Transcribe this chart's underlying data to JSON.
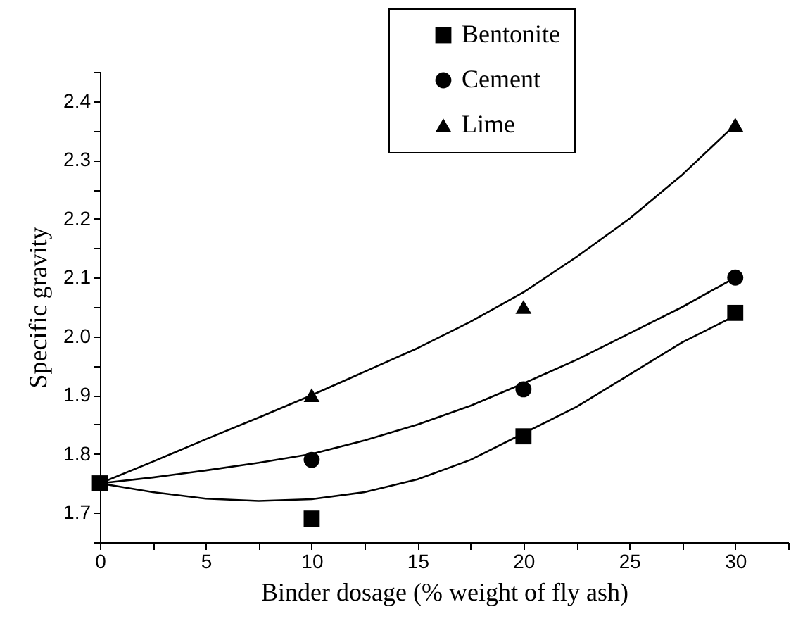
{
  "chart_data": {
    "type": "scatter",
    "xlabel": "Binder dosage (% weight of fly ash)",
    "ylabel": "Specific gravity",
    "xlim": [
      0,
      32.5
    ],
    "ylim": [
      1.65,
      2.45
    ],
    "xticks": [
      0,
      {
        "value": 2.5,
        "label": null
      },
      5,
      {
        "value": 7.5,
        "label": null
      },
      10,
      {
        "value": 12.5,
        "label": null
      },
      15,
      {
        "value": 17.5,
        "label": null
      },
      20,
      {
        "value": 22.5,
        "label": null
      },
      25,
      {
        "value": 27.5,
        "label": null
      },
      30,
      {
        "value": 32.5,
        "label": null
      }
    ],
    "yticks": [
      {
        "value": 1.65,
        "label": null
      },
      1.7,
      {
        "value": 1.75,
        "label": null
      },
      1.8,
      {
        "value": 1.85,
        "label": null
      },
      1.9,
      {
        "value": 1.95,
        "label": null
      },
      {
        "value": 2,
        "label": "2.0"
      },
      {
        "value": 2.05,
        "label": null
      },
      2.1,
      {
        "value": 2.15,
        "label": null
      },
      2.2,
      {
        "value": 2.25,
        "label": null
      },
      2.3,
      {
        "value": 2.35,
        "label": null
      },
      2.4,
      {
        "value": 2.45,
        "label": null
      }
    ],
    "grid": false,
    "legend": "top",
    "x": [
      0,
      10,
      20,
      30
    ],
    "series": [
      {
        "name": "Bentonite",
        "type": "scatter",
        "marker": "square",
        "color": "#000000",
        "values": [
          1.75,
          1.69,
          1.83,
          2.04
        ]
      },
      {
        "name": "Cement",
        "type": "scatter",
        "marker": "circle",
        "color": "#000000",
        "values": [
          null,
          1.79,
          1.91,
          2.1
        ]
      },
      {
        "name": "Lime",
        "type": "scatter",
        "marker": "triangle",
        "color": "#000000",
        "values": [
          null,
          1.9,
          2.05,
          2.36
        ]
      },
      {
        "type": "line",
        "color": "#000000",
        "line_style": "solid",
        "x": [
          0,
          2.5,
          5,
          7.5,
          10,
          12.5,
          15,
          17.5,
          20,
          22.5,
          25,
          27.5,
          30
        ],
        "values": [
          1.75,
          1.735,
          1.724,
          1.72,
          1.723,
          1.735,
          1.757,
          1.79,
          1.835,
          1.88,
          1.935,
          1.99,
          2.035
        ]
      },
      {
        "type": "line",
        "color": "#000000",
        "line_style": "solid",
        "x": [
          0,
          2.5,
          5,
          7.5,
          10,
          12.5,
          15,
          17.5,
          20,
          22.5,
          25,
          27.5,
          30
        ],
        "values": [
          1.75,
          1.76,
          1.772,
          1.785,
          1.8,
          1.823,
          1.85,
          1.882,
          1.92,
          1.96,
          2.005,
          2.05,
          2.1
        ]
      },
      {
        "type": "line",
        "color": "#000000",
        "line_style": "solid",
        "x": [
          0,
          2.5,
          5,
          7.5,
          10,
          12.5,
          15,
          17.5,
          20,
          22.5,
          25,
          27.5,
          30
        ],
        "values": [
          1.75,
          1.787,
          1.825,
          1.862,
          1.9,
          1.94,
          1.98,
          2.025,
          2.075,
          2.135,
          2.2,
          2.275,
          2.36
        ]
      }
    ]
  }
}
